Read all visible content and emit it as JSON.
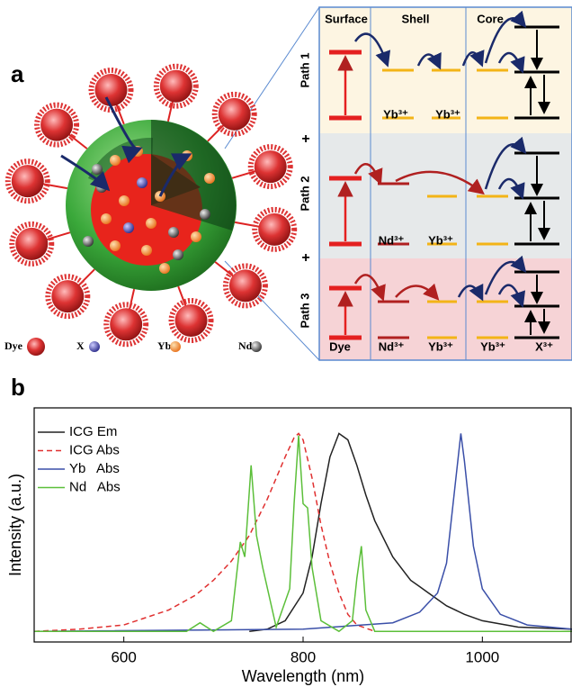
{
  "panel_a": {
    "label": "a",
    "legend": [
      "Dye",
      "X",
      "Yb",
      "Nd"
    ],
    "columns": [
      "Surface",
      "Shell",
      "Core"
    ],
    "paths": [
      "Path 1",
      "Path 2",
      "Path 3"
    ],
    "plus": [
      "+",
      "+"
    ],
    "levels": [
      [
        "Yb³⁺",
        "Yb³⁺"
      ],
      [
        "Nd³⁺",
        "Yb³⁺"
      ],
      [
        "Dye",
        "Nd³⁺",
        "Yb³⁺",
        "Yb³⁺",
        "X³⁺"
      ]
    ]
  },
  "chart_data": {
    "type": "line",
    "panel_label": "b",
    "x_label": "Wavelength (nm)",
    "y_label": "Intensity (a.u.)",
    "xlim": [
      500,
      1100
    ],
    "xticks": [
      600,
      800,
      1000
    ],
    "ylim": [
      -0.05,
      1.05
    ],
    "legend": "upper left",
    "series": [
      {
        "name": "ICG Em",
        "color": "#222222",
        "line_style": "solid",
        "x": [
          740,
          760,
          780,
          800,
          810,
          820,
          830,
          840,
          850,
          860,
          870,
          880,
          900,
          920,
          930,
          940,
          960,
          980,
          1000,
          1040,
          1100
        ],
        "values": [
          0,
          0.01,
          0.05,
          0.18,
          0.35,
          0.6,
          0.82,
          0.93,
          0.9,
          0.78,
          0.64,
          0.52,
          0.35,
          0.24,
          0.21,
          0.18,
          0.12,
          0.08,
          0.05,
          0.02,
          0.01
        ]
      },
      {
        "name": "ICG Abs",
        "color": "#e03030",
        "line_style": "dashed",
        "x": [
          500,
          550,
          600,
          650,
          680,
          700,
          720,
          740,
          760,
          780,
          790,
          795,
          800,
          810,
          820,
          830,
          840,
          850,
          860,
          880
        ],
        "values": [
          0,
          0.01,
          0.03,
          0.1,
          0.17,
          0.24,
          0.33,
          0.45,
          0.62,
          0.82,
          0.91,
          0.93,
          0.9,
          0.72,
          0.5,
          0.32,
          0.18,
          0.08,
          0.03,
          0
        ]
      },
      {
        "name": "Yb   Abs",
        "color": "#3a4fa8",
        "line_style": "solid",
        "x": [
          500,
          800,
          900,
          930,
          950,
          960,
          970,
          976,
          980,
          990,
          1000,
          1020,
          1050,
          1100
        ],
        "values": [
          0,
          0.01,
          0.04,
          0.09,
          0.18,
          0.32,
          0.7,
          0.93,
          0.8,
          0.4,
          0.2,
          0.08,
          0.03,
          0.01
        ]
      },
      {
        "name": "Nd   Abs",
        "color": "#5cbf3a",
        "line_style": "solid",
        "x": [
          500,
          670,
          685,
          700,
          720,
          730,
          735,
          742,
          748,
          755,
          770,
          785,
          790,
          795,
          800,
          805,
          810,
          820,
          840,
          855,
          860,
          865,
          870,
          880,
          900,
          1100
        ],
        "values": [
          0,
          0,
          0.04,
          0,
          0.05,
          0.42,
          0.35,
          0.78,
          0.45,
          0.3,
          0.02,
          0.2,
          0.6,
          0.92,
          0.6,
          0.58,
          0.3,
          0.05,
          0,
          0.05,
          0.25,
          0.4,
          0.1,
          0,
          0,
          0
        ]
      }
    ]
  }
}
